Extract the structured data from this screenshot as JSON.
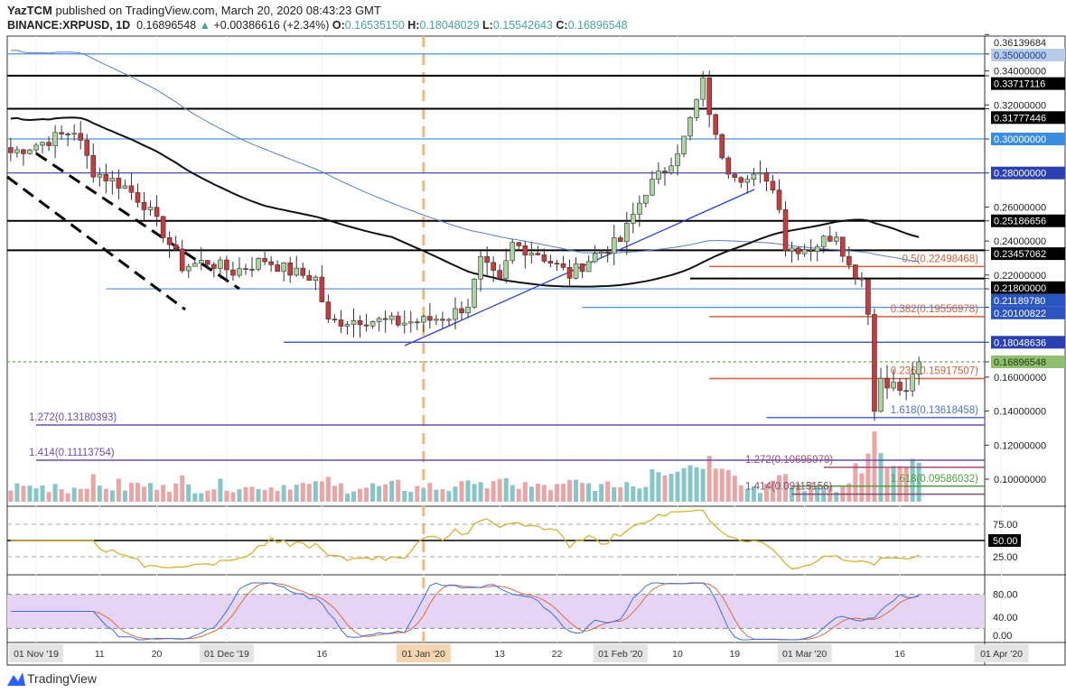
{
  "header": {
    "publisher": "YazTCM",
    "published_text": "published on TradingView.com, March 20, 2020 08:43:23 GMT",
    "symbol": "BINANCE:XRPUSD, 1D",
    "last": "0.16896548",
    "change": "+0.00386616 (+2.34%)",
    "open_label": "O:",
    "open": "0.16535150",
    "high_label": "H:",
    "high": "0.18048029",
    "low_label": "L:",
    "low": "0.15542643",
    "close_label": "C:",
    "close": "0.16896548"
  },
  "footer": {
    "brand": "TradingView"
  },
  "chart_data": {
    "type": "candlestick",
    "ylim": [
      0.085,
      0.365
    ],
    "price_ticks": [
      "0.36139684",
      "0.35000000",
      "0.34000000",
      "0.33717116",
      "0.32000000",
      "0.31777446",
      "0.30000000",
      "0.28000000",
      "0.26000000",
      "0.25186656",
      "0.24000000",
      "0.23457062",
      "0.22000000",
      "0.21800000",
      "0.21189780",
      "0.20100822",
      "0.18048636",
      "0.16896548",
      "0.16000000",
      "0.14000000",
      "0.12000000",
      "0.10000000"
    ],
    "x_ticks": [
      {
        "date": "2019-11-01",
        "label": "01 Nov '19",
        "boxed": true
      },
      {
        "date": "2019-11-11",
        "label": "11"
      },
      {
        "date": "2019-11-20",
        "label": "20"
      },
      {
        "date": "2019-12-01",
        "label": "01 Dec '19",
        "boxed": true
      },
      {
        "date": "2019-12-16",
        "label": "16"
      },
      {
        "date": "2020-01-01",
        "label": "01 Jan '20",
        "boxed": true,
        "highlight": true
      },
      {
        "date": "2020-01-13",
        "label": "13"
      },
      {
        "date": "2020-01-22",
        "label": "22"
      },
      {
        "date": "2020-02-01",
        "label": "01 Feb '20",
        "boxed": true
      },
      {
        "date": "2020-02-10",
        "label": "10"
      },
      {
        "date": "2020-02-19",
        "label": "19"
      },
      {
        "date": "2020-03-01",
        "label": "01 Mar '20",
        "boxed": true
      },
      {
        "date": "2020-03-16",
        "label": "16"
      },
      {
        "date": "2020-04-01",
        "label": "01 Apr '20",
        "boxed": true
      }
    ],
    "closes": [
      [
        "2019-10-28",
        0.292
      ],
      [
        "2019-11-02",
        0.298
      ],
      [
        "2019-11-07",
        0.305
      ],
      [
        "2019-11-10",
        0.281
      ],
      [
        "2019-11-15",
        0.272
      ],
      [
        "2019-11-18",
        0.262
      ],
      [
        "2019-11-21",
        0.245
      ],
      [
        "2019-11-24",
        0.225
      ],
      [
        "2019-11-28",
        0.228
      ],
      [
        "2019-12-02",
        0.222
      ],
      [
        "2019-12-07",
        0.229
      ],
      [
        "2019-12-11",
        0.222
      ],
      [
        "2019-12-15",
        0.218
      ],
      [
        "2019-12-17",
        0.192
      ],
      [
        "2019-12-22",
        0.194
      ],
      [
        "2019-12-28",
        0.192
      ],
      [
        "2020-01-01",
        0.193
      ],
      [
        "2020-01-05",
        0.196
      ],
      [
        "2020-01-08",
        0.203
      ],
      [
        "2020-01-10",
        0.228
      ],
      [
        "2020-01-13",
        0.215
      ],
      [
        "2020-01-15",
        0.238
      ],
      [
        "2020-01-19",
        0.233
      ],
      [
        "2020-01-24",
        0.22
      ],
      [
        "2020-01-28",
        0.232
      ],
      [
        "2020-02-01",
        0.24
      ],
      [
        "2020-02-05",
        0.27
      ],
      [
        "2020-02-08",
        0.282
      ],
      [
        "2020-02-11",
        0.3
      ],
      [
        "2020-02-14",
        0.333
      ],
      [
        "2020-02-16",
        0.3
      ],
      [
        "2020-02-18",
        0.283
      ],
      [
        "2020-02-21",
        0.276
      ],
      [
        "2020-02-24",
        0.278
      ],
      [
        "2020-02-26",
        0.262
      ],
      [
        "2020-02-27",
        0.236
      ],
      [
        "2020-03-02",
        0.236
      ],
      [
        "2020-03-06",
        0.245
      ],
      [
        "2020-03-08",
        0.225
      ],
      [
        "2020-03-10",
        0.218
      ],
      [
        "2020-03-11",
        0.2
      ],
      [
        "2020-03-12",
        0.14
      ],
      [
        "2020-03-13",
        0.16
      ],
      [
        "2020-03-15",
        0.155
      ],
      [
        "2020-03-17",
        0.15
      ],
      [
        "2020-03-18",
        0.163
      ],
      [
        "2020-03-19",
        0.169
      ]
    ],
    "levels": [
      {
        "price": 0.35,
        "color": "#4f8fe0",
        "label": "0.35000000",
        "label_bg": "#b8cce8",
        "label_color": "#1a3f8f"
      },
      {
        "price": 0.33717116,
        "color": "#000000",
        "label": "0.33717116",
        "label_bg": "#000000",
        "label_color": "#ffffff"
      },
      {
        "price": 0.31777446,
        "color": "#000000",
        "label": "0.31777446",
        "label_bg": "#000000",
        "label_color": "#ffffff"
      },
      {
        "price": 0.3,
        "color": "#4f8fe0",
        "label": "0.30000000",
        "label_bg": "#3b8de0",
        "label_color": "#ffffff"
      },
      {
        "price": 0.28,
        "color": "#2a3fb0",
        "label": "0.28000000",
        "label_bg": "#2a3fb0",
        "label_color": "#ffffff"
      },
      {
        "price": 0.25186656,
        "color": "#000000",
        "label": "0.25186656",
        "label_bg": "#000000",
        "label_color": "#ffffff"
      },
      {
        "price": 0.23457062,
        "color": "#000000",
        "label": "0.23457062",
        "label_bg": "#000000",
        "label_color": "#ffffff"
      },
      {
        "price": 0.218,
        "color": "#000000",
        "label": "0.21800000",
        "label_bg": "#000000",
        "label_color": "#ffffff",
        "from": "2020-02-12"
      },
      {
        "price": 0.2118978,
        "color": "#4f8fe0",
        "label": "0.21189780",
        "label_bg": "#2a55c0",
        "label_color": "#ffffff",
        "from": "2019-11-12"
      },
      {
        "price": 0.20100822,
        "color": "#4f8fe0",
        "label": "0.20100822",
        "label_bg": "#2a55c0",
        "label_color": "#ffffff",
        "from": "2020-01-26"
      },
      {
        "price": 0.18048636,
        "color": "#2a3fb0",
        "label": "0.18048636",
        "label_bg": "#2a3fb0",
        "label_color": "#ffffff",
        "from": "2019-12-10"
      },
      {
        "price": 0.16896548,
        "color": "#6aa84f",
        "label": "0.16896548",
        "label_bg": "#8fbf6f",
        "label_color": "#1c3a10",
        "dashed": true
      }
    ],
    "fib_levels": [
      {
        "label": "0.5(0.22498468)",
        "price": 0.22498468,
        "color": "#d0603e",
        "from": "2020-02-15"
      },
      {
        "label": "0.382(0.19556978)",
        "price": 0.19556978,
        "color": "#d0603e",
        "from": "2020-02-15"
      },
      {
        "label": "0.236(0.15917507)",
        "price": 0.15917507,
        "color": "#d0603e",
        "from": "2020-02-15"
      },
      {
        "label": "1.618(0.13618458)",
        "price": 0.13618458,
        "color": "#4f6fd0",
        "from": "2020-02-24"
      },
      {
        "label": "1.272(0.13180393)",
        "price": 0.13180393,
        "color": "#6a4fb0",
        "from": "2019-11-01"
      },
      {
        "label": "1.414(0.11113754)",
        "price": 0.11113754,
        "color": "#6a4fb0",
        "from": "2019-11-01"
      },
      {
        "label": "1.272(0.10695979)",
        "price": 0.10695979,
        "color": "#a04f6f",
        "from": "2020-03-04"
      },
      {
        "label": "1.618(0.09586032)",
        "price": 0.09586032,
        "color": "#4f9f3f",
        "from": "2020-02-28"
      },
      {
        "label": "1.414(0.09115156)",
        "price": 0.09115156,
        "color": "#7a4f6f",
        "from": "2020-02-28"
      }
    ],
    "rsi": {
      "ticks": [
        "75.00",
        "50.00",
        "25.00"
      ],
      "current_label": "50.00",
      "line_color": "#d8b030"
    },
    "stoch_rsi": {
      "ticks": [
        "80.00",
        "40.00",
        "0.00"
      ],
      "band_color": "#e6d4f5",
      "k_color": "#3b6fe0",
      "d_color": "#e06a3b"
    },
    "colors": {
      "up": "#5a8a5a",
      "down": "#c93b3b",
      "up_body": "#aad4a0",
      "vol_up": "#86c6c6",
      "vol_down": "#eba5a5"
    }
  }
}
